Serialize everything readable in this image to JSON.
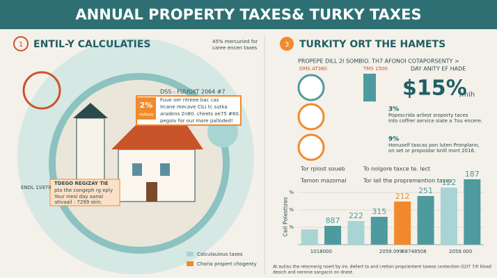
{
  "header": {
    "title": "ANNUAL PROPERTY TAXES& TURKY TAXES"
  },
  "left": {
    "number": "1",
    "title": "ENTIL-Y CALCULATIES",
    "note": [
      "45% mercuried for",
      "caree encen taxes"
    ],
    "callout": {
      "heading": "DSS - FUUGKT 2064 #7",
      "sub": "Fuue oer ntreee bac cas",
      "percent": "2%",
      "percent_note": "radaus",
      "lines": [
        "Ircane mecave CiLi tc sutka",
        "aradens 2n80. cheets oe75 #60.",
        "pegoiv for our more palloded!"
      ]
    },
    "box": {
      "tag": "ENDL 1S979",
      "heading": "TDEGO REGIZAY TIE",
      "lines": [
        "pto the congeph rg eply",
        "Your niesi day aanal",
        "atlvaail : 7299 skin."
      ]
    },
    "legend": [
      "Calculauious taxes",
      "Choria propert chogenty"
    ]
  },
  "right": {
    "number": "3",
    "title": "TURKITY ORT THE HAMETS",
    "subtitle": "PROPEPE DILL 2I SOMBIO. TH7 AFONOI COTAPORSENTY >",
    "labels": [
      "DMS AT360",
      "TMS 1500",
      "DAY ANITY EF HADE"
    ],
    "big": "$15%",
    "big_unit": "/mih",
    "rows": [
      {
        "percent": "3%",
        "lines": [
          "Popescrida arliest sroporty taces",
          "into coffrer service siate a 7ou encere."
        ]
      },
      {
        "percent": "9%",
        "lines": [
          "Honuself taxcas pon luten Pronplann,",
          "on set or propoidar bnill mort 2016."
        ]
      }
    ],
    "checks": [
      "Tor rplost soueb",
      "To nolgore taxce te. lect",
      "Tamon mazomal",
      "Tor lall the propremention taxes"
    ]
  },
  "chart_data": {
    "type": "bar",
    "y_label": "Cell Polestizes",
    "ylim": [
      0,
      100
    ],
    "yticks": [
      {
        "value": 75,
        "label": "%"
      },
      {
        "value": 50,
        "label": "%"
      },
      {
        "value": 25,
        "label": "%"
      }
    ],
    "categories": [
      "1018000",
      null,
      null,
      "2059.099",
      "68748508",
      null,
      "2059.000",
      null
    ],
    "values": [
      22,
      27,
      34,
      40,
      62,
      70,
      82,
      94
    ],
    "colors": [
      "#a9d4d4",
      "#4e9a9e",
      "#a9d4d4",
      "#4e9a9e",
      "#f08a2c",
      "#4e9a9e",
      "#a9d4d4",
      "#4e9a9e"
    ],
    "annotations": [
      "887",
      "222",
      "315",
      "212",
      "251",
      "122",
      "187"
    ]
  },
  "footer": [
    "At autisu the retornerig noert by ire, deliert ta and cretion proprientent taxess contection O2I7 7/0 kload",
    "desich and neronie sangacin on dnest."
  ]
}
